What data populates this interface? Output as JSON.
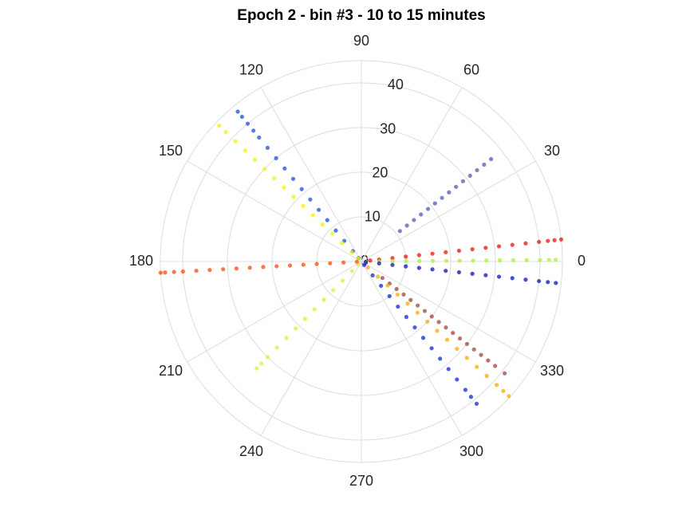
{
  "chart_data": {
    "type": "polar-scatter",
    "title": "Epoch 2 - bin #3 - 10 to 15 minutes",
    "rlim": [
      0,
      45
    ],
    "rticks": [
      0,
      10,
      20,
      30,
      40
    ],
    "thetaticks": [
      0,
      30,
      60,
      90,
      120,
      150,
      180,
      210,
      240,
      270,
      300,
      330
    ],
    "grid": true,
    "series": [
      {
        "color": "#1f4fe0",
        "theta": 129.5,
        "r": [
          1,
          3,
          6,
          9,
          12,
          15,
          18,
          21,
          24,
          27,
          30,
          33,
          36,
          38,
          40,
          42,
          43.5
        ]
      },
      {
        "color": "#f2f20a",
        "theta": 136.3,
        "r": [
          1,
          3,
          6,
          9,
          12,
          15,
          18,
          21,
          24,
          27,
          30,
          33,
          36,
          39,
          42,
          44
        ]
      },
      {
        "color": "#4f5fb0",
        "theta": 38.3,
        "r": [
          11,
          13,
          15,
          17,
          19,
          21,
          23,
          25,
          27,
          29,
          31,
          33,
          35,
          37
        ]
      },
      {
        "color": "#e8140a",
        "theta": 6.3,
        "r": [
          2,
          4,
          7,
          10,
          13,
          16,
          19,
          22,
          25,
          28,
          31,
          34,
          37,
          40,
          42,
          43.5,
          45
        ]
      },
      {
        "color": "#aaf23a",
        "theta": 0.5,
        "r": [
          1,
          4,
          7,
          10,
          13,
          16,
          19,
          22,
          25,
          28,
          31,
          34,
          37,
          40,
          42,
          43.5
        ]
      },
      {
        "color": "#0a14b4",
        "theta": 353.7,
        "r": [
          1,
          4,
          7,
          10,
          13,
          16,
          19,
          22,
          25,
          28,
          31,
          34,
          37,
          40,
          42,
          43.8
        ]
      },
      {
        "color": "#a0463c",
        "theta": 322,
        "r": [
          6,
          8,
          10,
          12,
          14,
          16,
          18,
          20,
          22,
          24,
          26,
          28,
          30,
          32,
          34,
          36,
          38,
          40.7
        ]
      },
      {
        "color": "#ffaa0a",
        "theta": 317.6,
        "r": [
          2,
          5,
          8,
          11,
          14,
          17,
          20,
          23,
          26,
          29,
          32,
          35,
          38,
          41,
          43,
          44.7
        ]
      },
      {
        "color": "#1428d2",
        "theta": 309,
        "r": [
          1,
          4,
          7,
          10,
          13,
          16,
          19,
          22,
          25,
          28,
          31,
          34,
          37,
          39,
          41
        ]
      },
      {
        "color": "#d8f03c",
        "theta": 225.6,
        "r": [
          1,
          3,
          6,
          9,
          12,
          15,
          18,
          21,
          24,
          27,
          30,
          32,
          33.5
        ]
      },
      {
        "color": "#ff4a0a",
        "theta": 183.2,
        "r": [
          1,
          4,
          7,
          10,
          13,
          16,
          19,
          22,
          25,
          28,
          31,
          34,
          37,
          40,
          42,
          44,
          45
        ]
      }
    ]
  }
}
